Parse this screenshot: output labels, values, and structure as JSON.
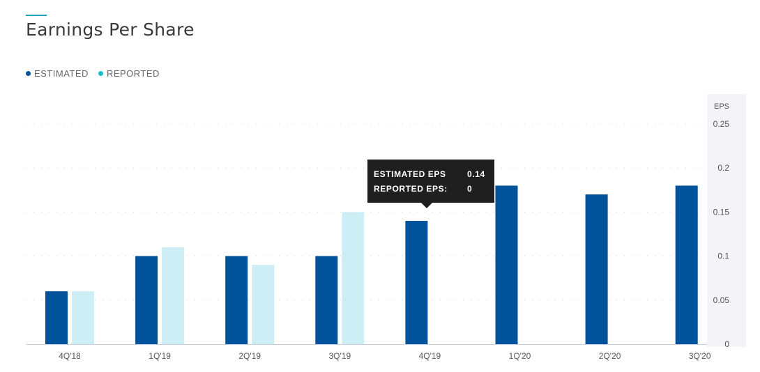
{
  "header": {
    "title": "Earnings Per Share"
  },
  "legend": [
    {
      "label": "ESTIMATED",
      "color": "#00529b"
    },
    {
      "label": "REPORTED",
      "color": "#1ab9cc"
    }
  ],
  "tooltip": {
    "rows": [
      {
        "label": "ESTIMATED EPS",
        "value": "0.14"
      },
      {
        "label": "REPORTED EPS:",
        "value": "0"
      }
    ]
  },
  "chart_data": {
    "type": "bar",
    "title": "Earnings Per Share",
    "ylabel": "EPS",
    "categories": [
      "4Q'18",
      "1Q'19",
      "2Q'19",
      "3Q'19",
      "4Q'19",
      "1Q'20",
      "2Q'20",
      "3Q'20"
    ],
    "series": [
      {
        "name": "ESTIMATED",
        "color": "#00529b",
        "values": [
          0.06,
          0.1,
          0.1,
          0.1,
          0.14,
          0.18,
          0.17,
          0.18
        ]
      },
      {
        "name": "REPORTED",
        "color": "#cdeef5",
        "values": [
          0.06,
          0.11,
          0.09,
          0.15,
          null,
          null,
          null,
          null
        ]
      }
    ],
    "ylim": [
      0,
      0.25
    ],
    "yticks": [
      "0",
      "0.05",
      "0.1",
      "0.15",
      "0.2",
      "0.25"
    ],
    "grid": true,
    "axis_position": "right",
    "legend_position": "top-left"
  }
}
